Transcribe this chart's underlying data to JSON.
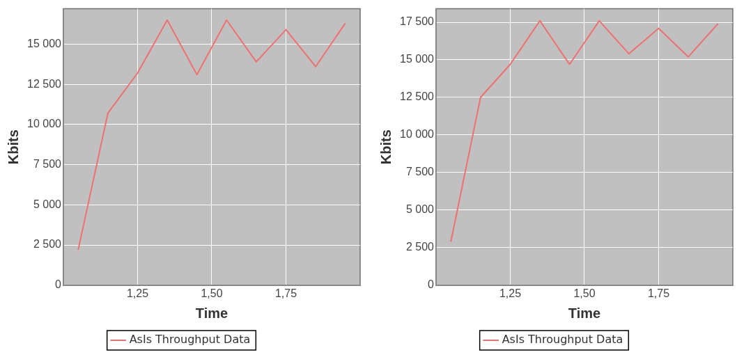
{
  "chart_data": [
    {
      "type": "line",
      "xlabel": "Time",
      "ylabel": "Kbits",
      "x": [
        1.05,
        1.15,
        1.25,
        1.35,
        1.45,
        1.55,
        1.65,
        1.75,
        1.85,
        1.95
      ],
      "series": [
        {
          "name": "AsIs Throughput Data",
          "color": "#f07070",
          "values": [
            2200,
            10700,
            13200,
            16500,
            13100,
            16500,
            13900,
            15900,
            13600,
            16300
          ]
        }
      ],
      "xlim": [
        1.0,
        2.0
      ],
      "xticks": [
        {
          "value": 1.25,
          "label": "1,25"
        },
        {
          "value": 1.5,
          "label": "1,50"
        },
        {
          "value": 1.75,
          "label": "1,75"
        }
      ],
      "ylim": [
        0,
        17200
      ],
      "yticks": [
        0,
        {
          "value": 2500,
          "label": "2 500"
        },
        {
          "value": 5000,
          "label": "5 000"
        },
        {
          "value": 7500,
          "label": "7 500"
        },
        {
          "value": 10000,
          "label": "10 000"
        },
        {
          "value": 12500,
          "label": "12 500"
        },
        {
          "value": 15000,
          "label": "15 000"
        }
      ],
      "grid": true,
      "legend": "bottom",
      "marker": "none",
      "line_style": "solid"
    },
    {
      "type": "line",
      "xlabel": "Time",
      "ylabel": "Kbits",
      "x": [
        1.05,
        1.15,
        1.25,
        1.35,
        1.45,
        1.55,
        1.65,
        1.75,
        1.85,
        1.95
      ],
      "series": [
        {
          "name": "AsIs Throughput Data",
          "color": "#f07070",
          "values": [
            2900,
            12500,
            14700,
            17600,
            14700,
            17600,
            15400,
            17100,
            15200,
            17400
          ]
        }
      ],
      "xlim": [
        1.0,
        2.0
      ],
      "xticks": [
        {
          "value": 1.25,
          "label": "1,25"
        },
        {
          "value": 1.5,
          "label": "1,50"
        },
        {
          "value": 1.75,
          "label": "1,75"
        }
      ],
      "ylim": [
        0,
        18400
      ],
      "yticks": [
        0,
        {
          "value": 2500,
          "label": "2 500"
        },
        {
          "value": 5000,
          "label": "5 000"
        },
        {
          "value": 7500,
          "label": "7 500"
        },
        {
          "value": 10000,
          "label": "10 000"
        },
        {
          "value": 12500,
          "label": "12 500"
        },
        {
          "value": 15000,
          "label": "15 000"
        },
        {
          "value": 17500,
          "label": "17 500"
        }
      ],
      "grid": true,
      "legend": "bottom",
      "marker": "none",
      "line_style": "solid"
    }
  ]
}
